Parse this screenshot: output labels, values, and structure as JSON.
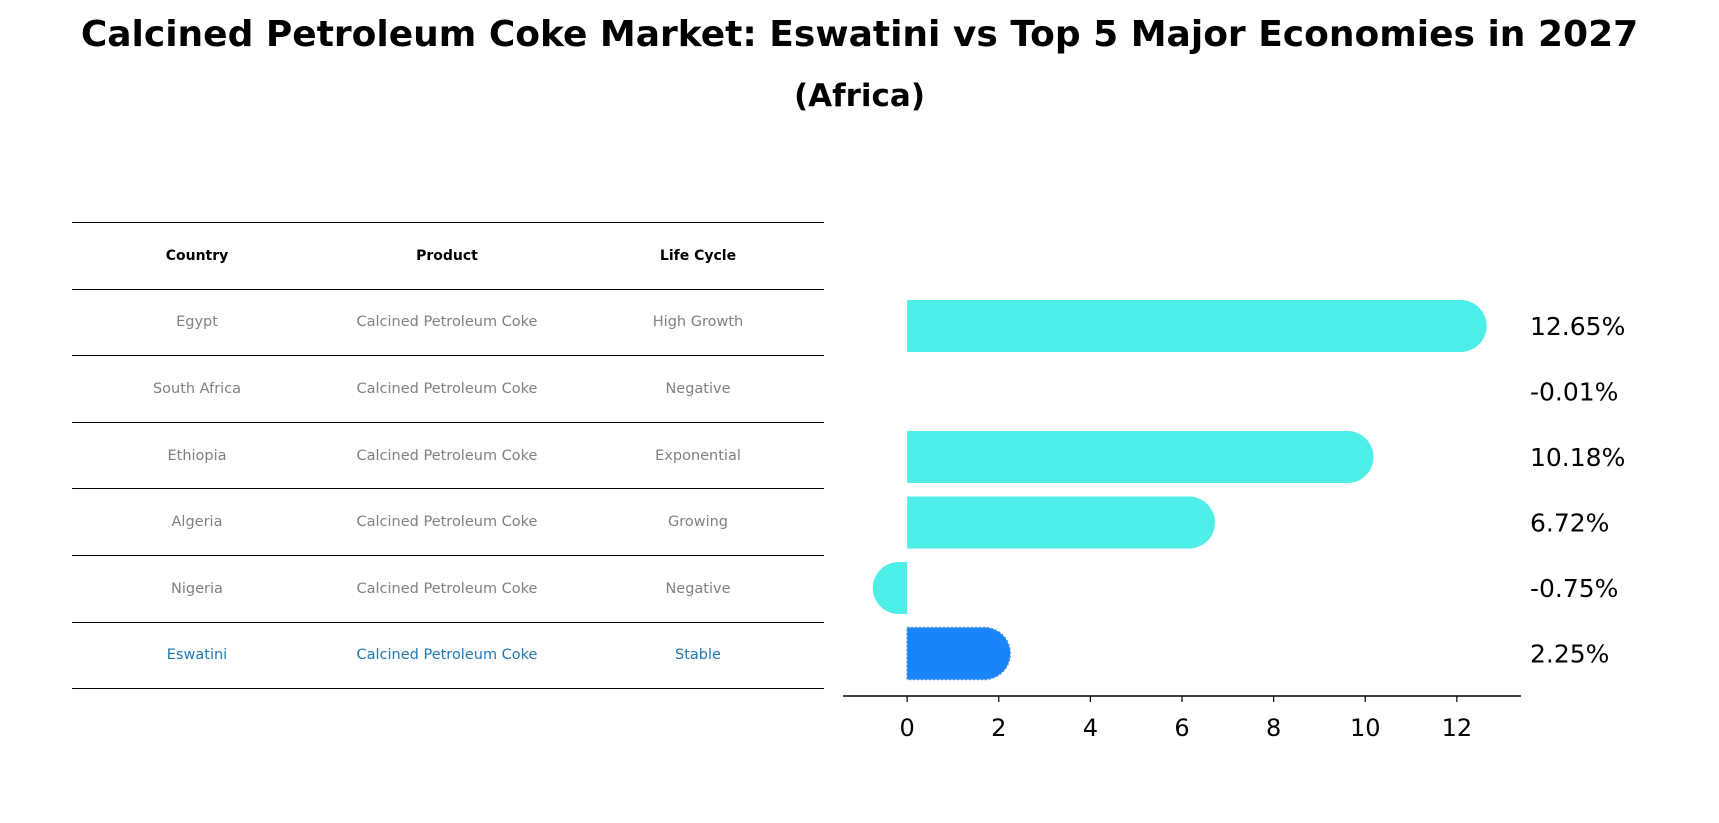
{
  "title": "Calcined Petroleum Coke Market: Eswatini vs Top 5 Major Economies in 2027",
  "subtitle": "(Africa)",
  "table": {
    "headers": [
      "Country",
      "Product",
      "Life Cycle"
    ],
    "rows": [
      [
        "Egypt",
        "Calcined Petroleum Coke",
        "High Growth"
      ],
      [
        "South Africa",
        "Calcined Petroleum Coke",
        "Negative"
      ],
      [
        "Ethiopia",
        "Calcined Petroleum Coke",
        "Exponential"
      ],
      [
        "Algeria",
        "Calcined Petroleum Coke",
        "Growing"
      ],
      [
        "Nigeria",
        "Calcined Petroleum Coke",
        "Negative"
      ],
      [
        "Eswatini",
        "Calcined Petroleum Coke",
        "Stable"
      ]
    ],
    "highlight_row": 5
  },
  "chart_data": {
    "type": "bar",
    "orientation": "horizontal",
    "categories": [
      "Egypt",
      "South Africa",
      "Ethiopia",
      "Algeria",
      "Nigeria",
      "Eswatini"
    ],
    "values": [
      12.65,
      -0.01,
      10.18,
      6.72,
      -0.75,
      2.25
    ],
    "labels": [
      "12.65%",
      "-0.01%",
      "10.18%",
      "6.72%",
      "-0.75%",
      "2.25%"
    ],
    "xlim": [
      -1.4,
      13.4
    ],
    "xticks": [
      0,
      2,
      4,
      6,
      8,
      10,
      12
    ],
    "bar_color": "#4deee8",
    "highlight_color": "#1a85f8",
    "highlight_index": 5
  }
}
